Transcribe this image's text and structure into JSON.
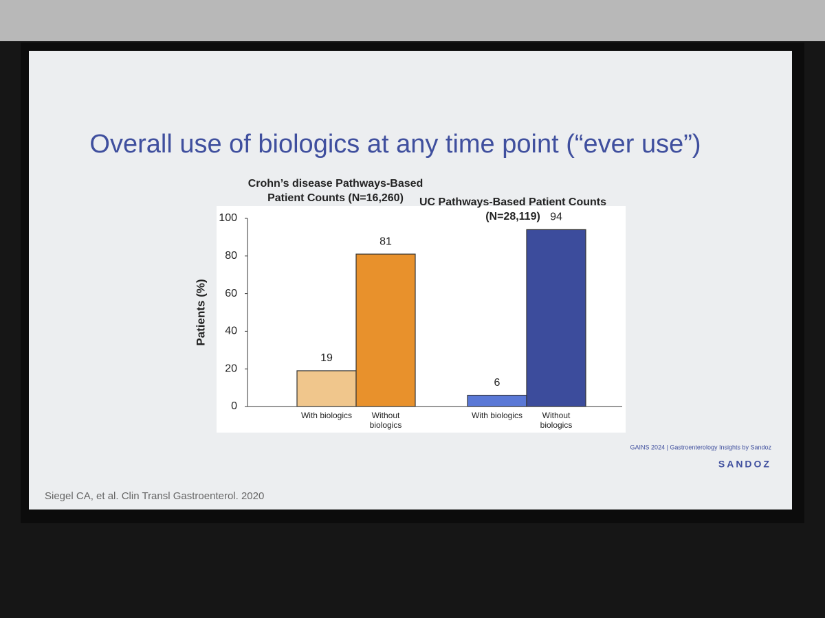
{
  "slide": {
    "title": "Overall use of biologics at any time point (“ever use”)",
    "citation": "Siegel CA, et al. Clin Transl Gastroenterol. 2020",
    "footer": "GAINS 2024 | Gastroenterology Insights by Sandoz",
    "logo": "SANDOZ"
  },
  "chart_data": {
    "type": "bar",
    "y_label": "Patients (%)",
    "ylim": [
      0,
      100
    ],
    "yticks": [
      0,
      20,
      40,
      60,
      80,
      100
    ],
    "groups": [
      {
        "title": "Crohn’s disease Pathways-Based Patient Counts (N=16,260)",
        "categories": [
          "With biologics",
          "Without biologics"
        ],
        "values": [
          19,
          81
        ],
        "colors": [
          "#f0c68c",
          "#e8912c"
        ]
      },
      {
        "title": "UC Pathways-Based Patient Counts (N=28,119)",
        "categories": [
          "With biologics",
          "Without biologics"
        ],
        "values": [
          6,
          94
        ],
        "colors": [
          "#5a78d6",
          "#3c4c9c"
        ]
      }
    ]
  }
}
